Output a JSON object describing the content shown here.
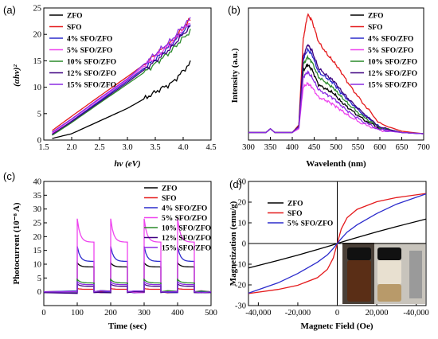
{
  "chart_data": [
    {
      "panel": "(a)",
      "type": "line",
      "xlabel": "hv (eV)",
      "ylabel": "(αhν)²",
      "xlim": [
        1.5,
        4.5
      ],
      "ylim": [
        0,
        25
      ],
      "xticks": [
        "1.5",
        "2.0",
        "2.5",
        "3.0",
        "3.5",
        "4.0",
        "4.5"
      ],
      "yticks": [
        "0",
        "5",
        "10",
        "15",
        "20",
        "25"
      ],
      "legend_position": "top-left",
      "x": [
        1.65,
        2.0,
        2.5,
        3.0,
        3.3,
        3.6,
        3.8,
        3.95,
        4.13
      ],
      "series": [
        {
          "name": "ZFO",
          "color": "#000000",
          "values": [
            0.3,
            1.2,
            3.6,
            6.0,
            7.8,
            9.7,
            10.8,
            12.5,
            14.6
          ]
        },
        {
          "name": "SFO",
          "color": "#e41a1c",
          "values": [
            1.8,
            4.5,
            8.3,
            12.0,
            14.3,
            17.0,
            18.7,
            20.6,
            22.8
          ]
        },
        {
          "name": "4% SFO/ZFO",
          "color": "#2b2bcc",
          "values": [
            1.0,
            3.6,
            7.4,
            11.2,
            13.6,
            16.2,
            18.2,
            20.0,
            21.9
          ]
        },
        {
          "name": "5% SFO/ZFO",
          "color": "#ee44ee",
          "values": [
            1.3,
            3.9,
            7.7,
            11.4,
            14.0,
            16.6,
            18.4,
            20.4,
            22.4
          ]
        },
        {
          "name": "10% SFO/ZFO",
          "color": "#2a8a2a",
          "values": [
            0.9,
            3.3,
            7.0,
            10.6,
            12.8,
            15.3,
            17.0,
            18.8,
            20.6
          ]
        },
        {
          "name": "12% SFO/ZFO",
          "color": "#3d0080",
          "values": [
            1.1,
            3.5,
            7.2,
            10.9,
            13.3,
            15.8,
            17.6,
            19.5,
            21.5
          ]
        },
        {
          "name": "15% SFO/ZFO",
          "color": "#8b2be2",
          "values": [
            1.5,
            4.0,
            7.9,
            11.6,
            14.4,
            17.2,
            19.0,
            21.0,
            23.0
          ]
        }
      ]
    },
    {
      "panel": "(b)",
      "type": "line",
      "xlabel": "Wavelenth (nm)",
      "ylabel": "Intensity (a.u.)",
      "xlim": [
        300,
        700
      ],
      "xticks": [
        "300",
        "350",
        "400",
        "450",
        "500",
        "550",
        "600",
        "650",
        "700"
      ],
      "legend_position": "top-right",
      "x": [
        300,
        340,
        350,
        360,
        400,
        415,
        425,
        435,
        445,
        460,
        480,
        495,
        510,
        530,
        560,
        600,
        650,
        700
      ],
      "series": [
        {
          "name": "ZFO",
          "color": "#000000",
          "values": [
            0.06,
            0.06,
            0.09,
            0.06,
            0.06,
            0.1,
            0.55,
            0.6,
            0.56,
            0.44,
            0.4,
            0.37,
            0.31,
            0.25,
            0.17,
            0.09,
            0.06,
            0.05
          ]
        },
        {
          "name": "SFO",
          "color": "#e41a1c",
          "values": [
            0.06,
            0.06,
            0.09,
            0.06,
            0.06,
            0.12,
            0.8,
            1.0,
            0.95,
            0.78,
            0.68,
            0.62,
            0.55,
            0.44,
            0.3,
            0.13,
            0.07,
            0.05
          ]
        },
        {
          "name": "4% SFO/ZFO",
          "color": "#2b2bcc",
          "values": [
            0.06,
            0.06,
            0.09,
            0.06,
            0.06,
            0.11,
            0.64,
            0.72,
            0.68,
            0.54,
            0.49,
            0.45,
            0.38,
            0.31,
            0.21,
            0.1,
            0.06,
            0.05
          ]
        },
        {
          "name": "5% SFO/ZFO",
          "color": "#ee44ee",
          "values": [
            0.06,
            0.06,
            0.09,
            0.06,
            0.06,
            0.09,
            0.42,
            0.45,
            0.42,
            0.34,
            0.31,
            0.28,
            0.24,
            0.19,
            0.13,
            0.08,
            0.06,
            0.05
          ]
        },
        {
          "name": "10% SFO/ZFO",
          "color": "#2a8a2a",
          "values": [
            0.06,
            0.06,
            0.09,
            0.06,
            0.06,
            0.11,
            0.6,
            0.66,
            0.62,
            0.5,
            0.45,
            0.41,
            0.35,
            0.28,
            0.19,
            0.1,
            0.06,
            0.05
          ]
        },
        {
          "name": "12% SFO/ZFO",
          "color": "#3d0080",
          "values": [
            0.06,
            0.06,
            0.09,
            0.06,
            0.06,
            0.11,
            0.66,
            0.76,
            0.71,
            0.57,
            0.51,
            0.47,
            0.4,
            0.32,
            0.22,
            0.1,
            0.06,
            0.05
          ]
        },
        {
          "name": "15% SFO/ZFO",
          "color": "#8b2be2",
          "values": [
            0.06,
            0.06,
            0.09,
            0.06,
            0.06,
            0.1,
            0.5,
            0.54,
            0.5,
            0.4,
            0.36,
            0.33,
            0.28,
            0.22,
            0.15,
            0.08,
            0.06,
            0.05
          ]
        }
      ]
    },
    {
      "panel": "(c)",
      "type": "line",
      "xlabel": "Time (sec)",
      "ylabel": "Photocurrent (10⁻⁸ A)",
      "xlim": [
        0,
        500
      ],
      "ylim": [
        -5,
        40
      ],
      "xticks": [
        "0",
        "100",
        "200",
        "300",
        "400",
        "500"
      ],
      "yticks": [
        "0",
        "5",
        "10",
        "15",
        "20",
        "25",
        "30",
        "35",
        "40"
      ],
      "legend_position": "top-right",
      "light_on_intervals": [
        [
          100,
          150
        ],
        [
          200,
          250
        ],
        [
          300,
          350
        ],
        [
          400,
          450
        ]
      ],
      "series": [
        {
          "name": "ZFO",
          "color": "#000000",
          "peak": 10.5,
          "plateau": 9.0,
          "baseline": 0.0
        },
        {
          "name": "SFO",
          "color": "#e41a1c",
          "peak": 1.2,
          "plateau": 0.9,
          "baseline": 0.0
        },
        {
          "name": "4%  SFO/ZFO",
          "color": "#2b2bcc",
          "peak": 16.5,
          "plateau": 11.0,
          "baseline": 0.0
        },
        {
          "name": "5%  SFO/ZFO",
          "color": "#ee44ee",
          "peak": 26.5,
          "plateau": 18.0,
          "baseline": 0.0
        },
        {
          "name": "10% SFO/ZFO",
          "color": "#2a8a2a",
          "peak": 4.5,
          "plateau": 3.2,
          "baseline": 0.0
        },
        {
          "name": "12% SFO/ZFO",
          "color": "#3d0080",
          "peak": 2.8,
          "plateau": 2.0,
          "baseline": -0.3
        },
        {
          "name": "15% SFO/ZFO",
          "color": "#8b2be2",
          "peak": 3.6,
          "plateau": 2.6,
          "baseline": 0.0
        }
      ]
    },
    {
      "panel": "(d)",
      "type": "line",
      "xlabel": "Magnetc Field (Oe)",
      "ylabel": "Magnetization (emu/g)",
      "xlim": [
        -45000,
        45000
      ],
      "ylim": [
        -30,
        30
      ],
      "xticks": [
        "-40,000",
        "-20,000",
        "0",
        "20,000",
        "-40,000"
      ],
      "yticks": [
        "-30",
        "-20",
        "-10",
        "0",
        "10",
        "20",
        "30"
      ],
      "legend_position": "top-left",
      "inset_photo": "vials",
      "x": [
        -45000,
        -30000,
        -20000,
        -10000,
        -5000,
        -2000,
        0,
        2000,
        5000,
        10000,
        20000,
        30000,
        45000
      ],
      "series": [
        {
          "name": "ZFO",
          "color": "#000000",
          "values": [
            -11.8,
            -8.2,
            -5.6,
            -2.9,
            -1.5,
            -0.6,
            0,
            0.6,
            1.5,
            2.9,
            5.6,
            8.2,
            11.8
          ]
        },
        {
          "name": "SFO",
          "color": "#e41a1c",
          "values": [
            -24.2,
            -22.2,
            -20.2,
            -16.5,
            -12.5,
            -7.0,
            0,
            7.0,
            12.5,
            16.5,
            20.2,
            22.2,
            24.2
          ]
        },
        {
          "name": "5% SFO/ZFO",
          "color": "#2b2bcc",
          "values": [
            -24.0,
            -19.0,
            -14.5,
            -9.0,
            -5.5,
            -2.4,
            0,
            2.4,
            5.5,
            9.0,
            14.5,
            19.0,
            24.0
          ]
        }
      ]
    }
  ]
}
